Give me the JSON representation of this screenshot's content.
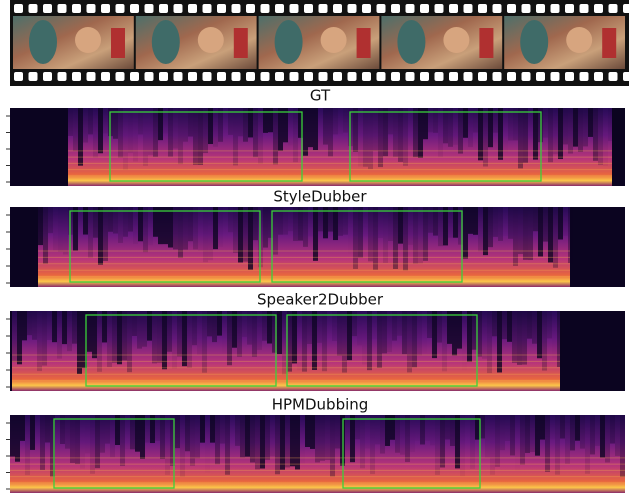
{
  "panels": [
    {
      "label": "GT"
    },
    {
      "label": "StyleDubber"
    },
    {
      "label": "Speaker2Dubber"
    },
    {
      "label": "HPMDubbing"
    }
  ]
}
